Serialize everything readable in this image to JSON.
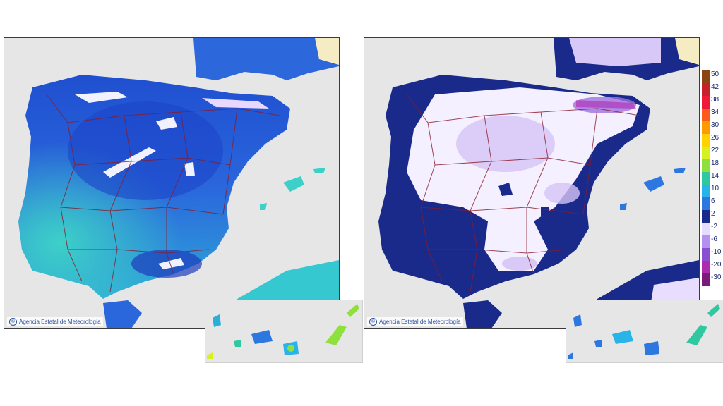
{
  "credit": {
    "symbol": "©",
    "text": "Agencia Estatal de Meteorología"
  },
  "legend": {
    "labels": [
      "50",
      "42",
      "38",
      "34",
      "30",
      "26",
      "22",
      "18",
      "14",
      "10",
      "6",
      "2",
      "-2",
      "-6",
      "-10",
      "-20",
      "-30"
    ],
    "colors": [
      "#8b4513",
      "#c8202a",
      "#f01838",
      "#ff5a1e",
      "#ff9a00",
      "#ffd200",
      "#d8f020",
      "#8ee03c",
      "#30c8a0",
      "#28b4e8",
      "#2c78e0",
      "#1a2a8a",
      "#e6dcff",
      "#b490f0",
      "#8a4ed0",
      "#b02ab0",
      "#7a1a7a"
    ]
  },
  "maps": {
    "left": {
      "shown": "temperature-field-warmer"
    },
    "right": {
      "shown": "temperature-field-colder"
    }
  }
}
